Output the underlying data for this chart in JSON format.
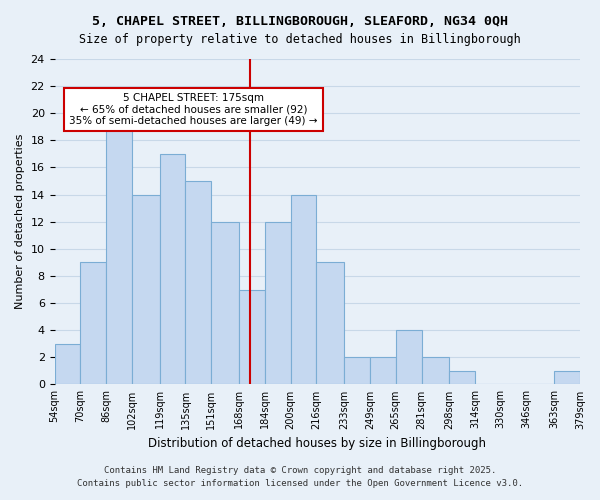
{
  "title1": "5, CHAPEL STREET, BILLINGBOROUGH, SLEAFORD, NG34 0QH",
  "title2": "Size of property relative to detached houses in Billingborough",
  "xlabel": "Distribution of detached houses by size in Billingborough",
  "ylabel": "Number of detached properties",
  "bin_edges": [
    54,
    70,
    86,
    102,
    119,
    135,
    151,
    168,
    184,
    200,
    216,
    233,
    249,
    265,
    281,
    298,
    314,
    330,
    346,
    363,
    379
  ],
  "bin_labels": [
    "54sqm",
    "70sqm",
    "86sqm",
    "102sqm",
    "119sqm",
    "135sqm",
    "151sqm",
    "168sqm",
    "184sqm",
    "200sqm",
    "216sqm",
    "233sqm",
    "249sqm",
    "265sqm",
    "281sqm",
    "298sqm",
    "314sqm",
    "330sqm",
    "346sqm",
    "363sqm",
    "379sqm"
  ],
  "counts": [
    3,
    9,
    19,
    14,
    17,
    15,
    12,
    7,
    12,
    14,
    9,
    2,
    2,
    4,
    2,
    1,
    0,
    0,
    0,
    1
  ],
  "bar_color": "#c5d8f0",
  "bar_edge_color": "#7badd4",
  "marker_value": 175,
  "marker_color": "#cc0000",
  "annotation_title": "5 CHAPEL STREET: 175sqm",
  "annotation_line1": "← 65% of detached houses are smaller (92)",
  "annotation_line2": "35% of semi-detached houses are larger (49) →",
  "annotation_box_color": "#ffffff",
  "annotation_box_edge": "#cc0000",
  "ylim": [
    0,
    24
  ],
  "yticks": [
    0,
    2,
    4,
    6,
    8,
    10,
    12,
    14,
    16,
    18,
    20,
    22,
    24
  ],
  "grid_color": "#c8d8e8",
  "background_color": "#e8f0f8",
  "footer1": "Contains HM Land Registry data © Crown copyright and database right 2025.",
  "footer2": "Contains public sector information licensed under the Open Government Licence v3.0."
}
